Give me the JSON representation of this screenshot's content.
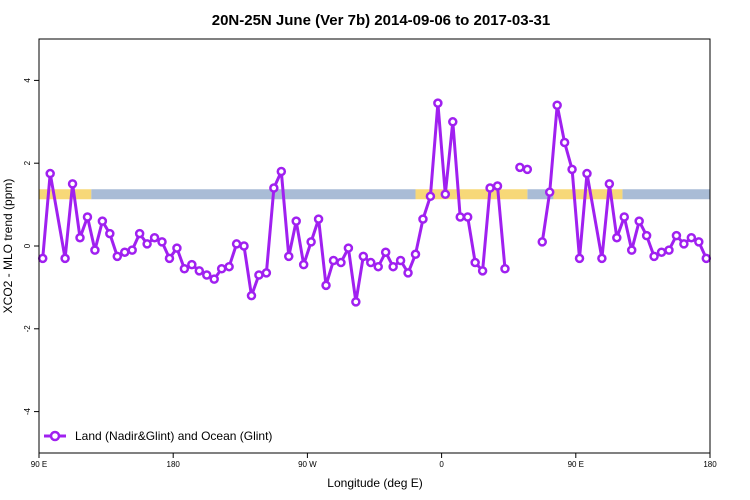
{
  "chart_data": {
    "type": "line",
    "title": "20N-25N June (Ver 7b)   2014-09-06 to 2017-03-31",
    "xlabel": "Longitude (deg E)",
    "ylabel": "XCO2 - MLO trend (ppm)",
    "xlim": [
      0,
      360
    ],
    "ylim": [
      -5,
      5
    ],
    "x_ticks": [
      {
        "value": 0,
        "label": "90 E"
      },
      {
        "value": 72,
        "label": "180"
      },
      {
        "value": 144,
        "label": "90 W"
      },
      {
        "value": 216,
        "label": "0"
      },
      {
        "value": 288,
        "label": "90 E"
      },
      {
        "value": 360,
        "label": "180"
      }
    ],
    "y_ticks": [
      {
        "value": -4,
        "label": "-4"
      },
      {
        "value": -2,
        "label": "-2"
      },
      {
        "value": 0,
        "label": "0"
      },
      {
        "value": 2,
        "label": "2"
      },
      {
        "value": 4,
        "label": "4"
      }
    ],
    "grid": false,
    "legend_position": "bottom-left",
    "land_ocean_bar": {
      "y_center": 1.25,
      "ocean_color": "#a9bcd6",
      "land_color": "#f7d878",
      "land_segments": [
        [
          0,
          28
        ],
        [
          202,
          262
        ],
        [
          276,
          313
        ]
      ],
      "ocean_segments": [
        [
          28,
          202
        ],
        [
          262,
          276
        ],
        [
          313,
          360
        ]
      ]
    },
    "series": [
      {
        "name": "Land (Nadir&Glint) and Ocean (Glint)",
        "color": "#a020f0",
        "segments": [
          [
            [
              2,
              -0.3
            ],
            [
              6,
              1.75
            ],
            [
              14,
              -0.3
            ],
            [
              18,
              1.5
            ],
            [
              22,
              0.2
            ],
            [
              26,
              0.7
            ],
            [
              30,
              -0.1
            ],
            [
              34,
              0.6
            ],
            [
              38,
              0.3
            ],
            [
              42,
              -0.25
            ],
            [
              46,
              -0.15
            ],
            [
              50,
              -0.1
            ],
            [
              54,
              0.3
            ],
            [
              58,
              0.05
            ],
            [
              62,
              0.2
            ],
            [
              66,
              0.1
            ],
            [
              70,
              -0.3
            ],
            [
              74,
              -0.05
            ],
            [
              78,
              -0.55
            ],
            [
              82,
              -0.45
            ],
            [
              86,
              -0.6
            ],
            [
              90,
              -0.7
            ],
            [
              94,
              -0.8
            ],
            [
              98,
              -0.55
            ],
            [
              102,
              -0.5
            ],
            [
              106,
              0.05
            ],
            [
              110,
              0.0
            ],
            [
              114,
              -1.2
            ],
            [
              118,
              -0.7
            ],
            [
              122,
              -0.65
            ],
            [
              126,
              1.4
            ],
            [
              130,
              1.8
            ],
            [
              134,
              -0.25
            ],
            [
              138,
              0.6
            ],
            [
              142,
              -0.45
            ],
            [
              146,
              0.1
            ],
            [
              150,
              0.65
            ],
            [
              154,
              -0.95
            ],
            [
              158,
              -0.35
            ],
            [
              162,
              -0.4
            ],
            [
              166,
              -0.05
            ],
            [
              170,
              -1.35
            ],
            [
              174,
              -0.25
            ],
            [
              178,
              -0.4
            ],
            [
              182,
              -0.5
            ],
            [
              186,
              -0.15
            ],
            [
              190,
              -0.5
            ],
            [
              194,
              -0.35
            ],
            [
              198,
              -0.65
            ],
            [
              202,
              -0.2
            ],
            [
              206,
              0.65
            ],
            [
              210,
              1.2
            ],
            [
              214,
              3.45
            ],
            [
              218,
              1.25
            ],
            [
              222,
              3.0
            ],
            [
              226,
              0.7
            ],
            [
              230,
              0.7
            ],
            [
              234,
              -0.4
            ],
            [
              238,
              -0.6
            ],
            [
              242,
              1.4
            ],
            [
              246,
              1.45
            ],
            [
              250,
              -0.55
            ]
          ],
          [
            [
              258,
              1.9
            ],
            [
              262,
              1.85
            ]
          ],
          [
            [
              270,
              0.1
            ],
            [
              274,
              1.3
            ],
            [
              278,
              3.4
            ],
            [
              282,
              2.5
            ],
            [
              286,
              1.85
            ],
            [
              290,
              -0.3
            ],
            [
              294,
              1.75
            ],
            [
              302,
              -0.3
            ],
            [
              306,
              1.5
            ],
            [
              310,
              0.2
            ],
            [
              314,
              0.7
            ],
            [
              318,
              -0.1
            ],
            [
              322,
              0.6
            ],
            [
              326,
              0.25
            ],
            [
              330,
              -0.25
            ],
            [
              334,
              -0.15
            ],
            [
              338,
              -0.1
            ],
            [
              342,
              0.25
            ],
            [
              346,
              0.05
            ],
            [
              350,
              0.2
            ],
            [
              354,
              0.1
            ],
            [
              358,
              -0.3
            ]
          ]
        ]
      }
    ]
  }
}
